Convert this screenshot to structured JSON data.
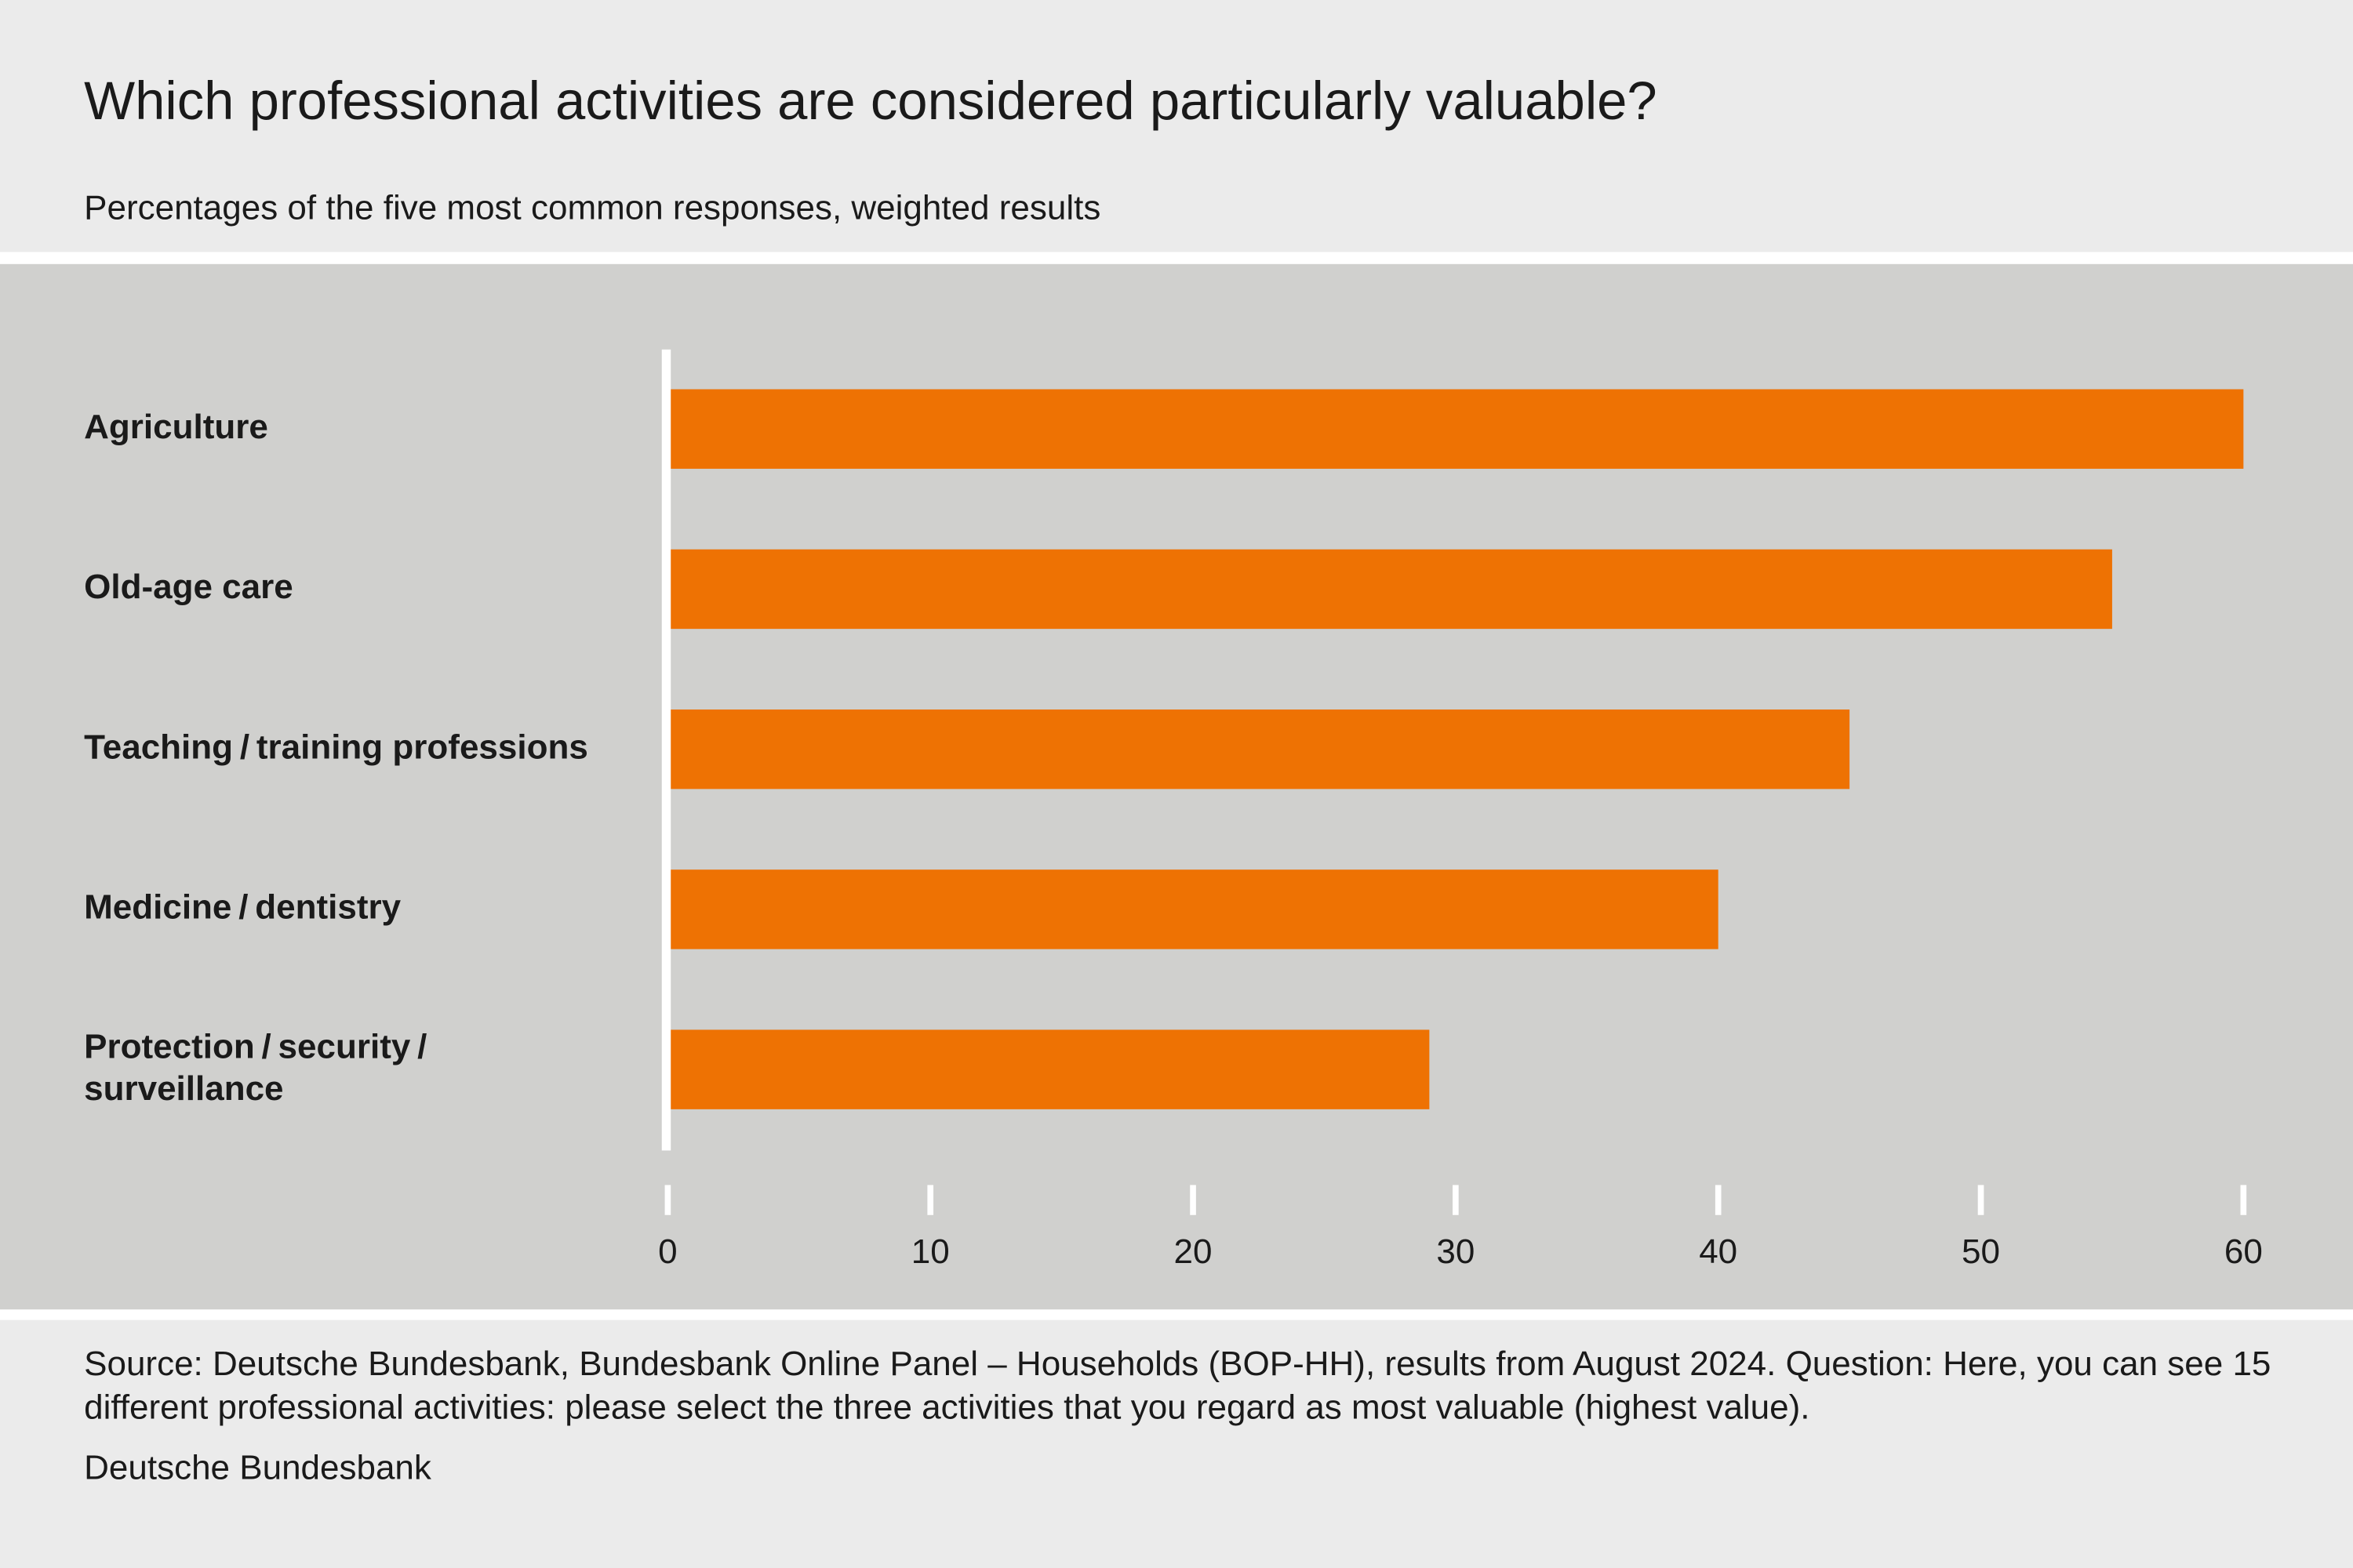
{
  "chart_data": {
    "type": "bar",
    "orientation": "horizontal",
    "title": "Which professional activities are considered particularly valuable?",
    "subtitle": "Percentages of the five most common responses, weighted results",
    "categories": [
      "Agriculture",
      "Old-age care",
      "Teaching / training professions",
      "Medicine / dentistry",
      "Protection / security / surveillance"
    ],
    "values": [
      60,
      55,
      45,
      40,
      29
    ],
    "color": "#ee7203",
    "xlim": [
      0,
      60
    ],
    "xticks": [
      0,
      10,
      20,
      30,
      40,
      50,
      60
    ],
    "source": "Source: Deutsche Bundesbank, Bundesbank Online Panel – Households (BOP-HH), results from August 2024. Question: Here, you can see 15 different professional activities: please select the three activities that you regard as most valuable (highest value).",
    "credit": "Deutsche Bundesbank"
  }
}
